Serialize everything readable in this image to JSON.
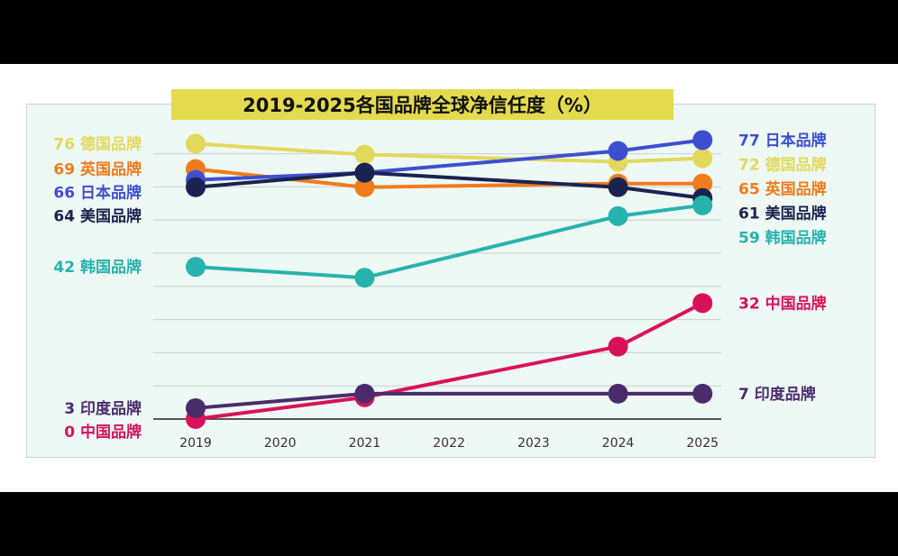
{
  "chart_data": {
    "type": "line",
    "title": "2019-2025各国品牌全球净信任度（%）",
    "xlabel": "",
    "ylabel": "",
    "categories": [
      "2019",
      "2020",
      "2021",
      "2022",
      "2023",
      "2024",
      "2025"
    ],
    "ylim": [
      0,
      85
    ],
    "grid": true,
    "series": [
      {
        "name": "德国品牌",
        "color": "#e2d95c",
        "points": [
          {
            "x": "2019",
            "y": 76
          },
          {
            "x": "2021",
            "y": 73
          },
          {
            "x": "2024",
            "y": 71
          },
          {
            "x": "2025",
            "y": 72
          }
        ],
        "start_label": "76",
        "end_label": "72"
      },
      {
        "name": "英国品牌",
        "color": "#f07b1d",
        "points": [
          {
            "x": "2019",
            "y": 69
          },
          {
            "x": "2021",
            "y": 64
          },
          {
            "x": "2024",
            "y": 65
          },
          {
            "x": "2025",
            "y": 65
          }
        ],
        "start_label": "69",
        "end_label": "65"
      },
      {
        "name": "日本品牌",
        "color": "#3d4fd0",
        "points": [
          {
            "x": "2019",
            "y": 66
          },
          {
            "x": "2021",
            "y": 68
          },
          {
            "x": "2024",
            "y": 74
          },
          {
            "x": "2025",
            "y": 77
          }
        ],
        "start_label": "66",
        "end_label": "77"
      },
      {
        "name": "美国品牌",
        "color": "#1a2350",
        "points": [
          {
            "x": "2019",
            "y": 64
          },
          {
            "x": "2021",
            "y": 68
          },
          {
            "x": "2024",
            "y": 64
          },
          {
            "x": "2025",
            "y": 61
          }
        ],
        "start_label": "64",
        "end_label": "61"
      },
      {
        "name": "韩国品牌",
        "color": "#26b3ad",
        "points": [
          {
            "x": "2019",
            "y": 42
          },
          {
            "x": "2021",
            "y": 39
          },
          {
            "x": "2024",
            "y": 56
          },
          {
            "x": "2025",
            "y": 59
          }
        ],
        "start_label": "42",
        "end_label": "59"
      },
      {
        "name": "中国品牌",
        "color": "#d8125a",
        "points": [
          {
            "x": "2019",
            "y": 0
          },
          {
            "x": "2021",
            "y": 6
          },
          {
            "x": "2024",
            "y": 20
          },
          {
            "x": "2025",
            "y": 32
          }
        ],
        "start_label": "0",
        "end_label": "32"
      },
      {
        "name": "印度品牌",
        "color": "#4a2c6c",
        "points": [
          {
            "x": "2019",
            "y": 3
          },
          {
            "x": "2021",
            "y": 7
          },
          {
            "x": "2024",
            "y": 7
          },
          {
            "x": "2025",
            "y": 7
          }
        ],
        "start_label": "3",
        "end_label": "7"
      }
    ]
  }
}
